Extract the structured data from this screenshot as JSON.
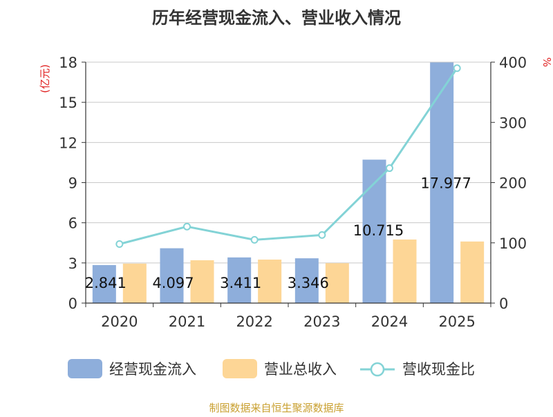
{
  "chart_data": {
    "type": "bar",
    "title": "历年经营现金流入、营业收入情况",
    "categories": [
      "2020",
      "2021",
      "2022",
      "2023",
      "2024",
      "2025"
    ],
    "y_left": {
      "label": "(亿元)",
      "ticks": [
        0,
        3,
        6,
        9,
        12,
        15,
        18
      ],
      "ylim": [
        0,
        18
      ]
    },
    "y_right": {
      "label": "%",
      "ticks": [
        0,
        100,
        200,
        300,
        400
      ],
      "ylim": [
        0,
        400
      ]
    },
    "series": [
      {
        "name": "经营现金流入",
        "kind": "bar",
        "axis": "left",
        "values": [
          2.841,
          4.097,
          3.411,
          3.346,
          10.715,
          17.977
        ],
        "labels": [
          "2.841",
          "4.097",
          "3.411",
          "3.346",
          "10.715",
          "17.977"
        ]
      },
      {
        "name": "营业总收入",
        "kind": "bar",
        "axis": "left",
        "values": [
          2.95,
          3.2,
          3.25,
          2.98,
          4.75,
          4.6
        ]
      },
      {
        "name": "营收现金比",
        "kind": "line",
        "axis": "right",
        "values": [
          98,
          127,
          105,
          113,
          224,
          390
        ]
      }
    ],
    "colors": {
      "cash_inflow": "#8eaedb",
      "revenue": "#fdd696",
      "ratio": "#83d3d6",
      "title": "#333333",
      "axis_label_left": "#e02020",
      "axis_label_right": "#e02020",
      "grid": "#c8c8c8",
      "axis": "#333333",
      "source": "#c9a030"
    }
  },
  "legend": {
    "items": [
      {
        "name": "经营现金流入",
        "type": "bar"
      },
      {
        "name": "营业总收入",
        "type": "bar"
      },
      {
        "name": "营收现金比",
        "type": "line"
      }
    ]
  },
  "source": "制图数据来自恒生聚源数据库"
}
